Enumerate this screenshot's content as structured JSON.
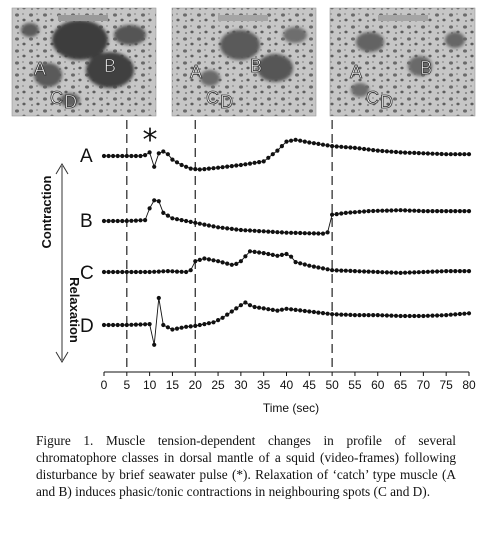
{
  "frames": [
    {
      "time": 0,
      "labels": [
        "A",
        "B",
        "C",
        "D"
      ]
    },
    {
      "time": 20,
      "labels": [
        "A",
        "B",
        "C",
        "D"
      ]
    },
    {
      "time": 50,
      "labels": [
        "A",
        "B",
        "C",
        "D"
      ]
    }
  ],
  "stimulus_marker": "*",
  "side_labels": {
    "top": "Contraction",
    "bottom": "Relaxation"
  },
  "caption": "Figure 1. Muscle tension-dependent changes in profile of several chromatophore classes in dorsal mantle of a squid (video-frames) following disturbance by brief seawater pulse (*). Relaxation of ‘catch’ type muscle (A and B) induces phasic/tonic contractions in neighbouring spots (C and D).",
  "colors": {
    "frame_background": "#c9c9c9",
    "spot_dark": "#4a4a4a",
    "trace": "#111111"
  },
  "chart_data": {
    "type": "line",
    "xlabel": "Time (sec)",
    "xlim": [
      0,
      80
    ],
    "x_ticks": [
      0,
      5,
      10,
      15,
      20,
      25,
      30,
      35,
      40,
      45,
      50,
      55,
      60,
      65,
      70,
      75,
      80
    ],
    "event_lines": [
      5,
      20,
      50
    ],
    "stimulus_time": 11,
    "series": [
      {
        "name": "A",
        "points": [
          [
            0,
            0
          ],
          [
            4,
            0
          ],
          [
            8,
            0
          ],
          [
            9,
            0.1
          ],
          [
            10,
            0.4
          ],
          [
            11,
            -1.2
          ],
          [
            12,
            0.3
          ],
          [
            13,
            0.5
          ],
          [
            14,
            0.2
          ],
          [
            15,
            -0.4
          ],
          [
            17,
            -1.0
          ],
          [
            19,
            -1.4
          ],
          [
            21,
            -1.5
          ],
          [
            25,
            -1.3
          ],
          [
            30,
            -1.0
          ],
          [
            35,
            -0.6
          ],
          [
            38,
            0.6
          ],
          [
            40,
            1.6
          ],
          [
            42,
            1.8
          ],
          [
            45,
            1.5
          ],
          [
            50,
            1.1
          ],
          [
            55,
            0.9
          ],
          [
            60,
            0.6
          ],
          [
            65,
            0.4
          ],
          [
            70,
            0.3
          ],
          [
            75,
            0.2
          ],
          [
            80,
            0.2
          ]
        ]
      },
      {
        "name": "B",
        "points": [
          [
            0,
            0
          ],
          [
            5,
            0
          ],
          [
            9,
            0.1
          ],
          [
            10,
            1.4
          ],
          [
            11,
            2.3
          ],
          [
            12,
            2.2
          ],
          [
            13,
            0.9
          ],
          [
            15,
            0.3
          ],
          [
            18,
            0
          ],
          [
            20,
            -0.2
          ],
          [
            25,
            -0.7
          ],
          [
            30,
            -1.0
          ],
          [
            40,
            -1.3
          ],
          [
            48,
            -1.4
          ],
          [
            49.5,
            -1.2
          ],
          [
            50,
            0.7
          ],
          [
            53,
            0.9
          ],
          [
            58,
            1.1
          ],
          [
            65,
            1.2
          ],
          [
            70,
            1.1
          ],
          [
            75,
            1.1
          ],
          [
            80,
            1.1
          ]
        ]
      },
      {
        "name": "C",
        "points": [
          [
            0,
            0
          ],
          [
            5,
            0
          ],
          [
            10,
            0
          ],
          [
            14,
            0.1
          ],
          [
            18,
            0
          ],
          [
            19,
            0.2
          ],
          [
            20,
            1.2
          ],
          [
            22,
            1.5
          ],
          [
            25,
            1.2
          ],
          [
            28,
            0.8
          ],
          [
            29,
            0.9
          ],
          [
            30,
            1.2
          ],
          [
            32,
            2.3
          ],
          [
            35,
            2.1
          ],
          [
            38,
            1.8
          ],
          [
            40,
            2.0
          ],
          [
            41,
            1.7
          ],
          [
            42,
            1.1
          ],
          [
            45,
            0.7
          ],
          [
            50,
            0.2
          ],
          [
            55,
            0.1
          ],
          [
            60,
            0
          ],
          [
            65,
            -0.1
          ],
          [
            70,
            0
          ],
          [
            75,
            0.1
          ],
          [
            80,
            0.1
          ]
        ]
      },
      {
        "name": "D",
        "points": [
          [
            0,
            0
          ],
          [
            5,
            0
          ],
          [
            10,
            0.1
          ],
          [
            11,
            -2.2
          ],
          [
            12,
            3.0
          ],
          [
            13,
            0
          ],
          [
            15,
            -0.5
          ],
          [
            18,
            -0.2
          ],
          [
            20,
            -0.1
          ],
          [
            24,
            0.3
          ],
          [
            26,
            0.8
          ],
          [
            28,
            1.5
          ],
          [
            30,
            2.2
          ],
          [
            31,
            2.5
          ],
          [
            32,
            2.2
          ],
          [
            33,
            2.0
          ],
          [
            38,
            1.6
          ],
          [
            40,
            1.8
          ],
          [
            45,
            1.5
          ],
          [
            50,
            1.2
          ],
          [
            55,
            1.1
          ],
          [
            60,
            1.1
          ],
          [
            65,
            1.0
          ],
          [
            70,
            1.0
          ],
          [
            75,
            1.1
          ],
          [
            80,
            1.3
          ]
        ]
      }
    ]
  }
}
